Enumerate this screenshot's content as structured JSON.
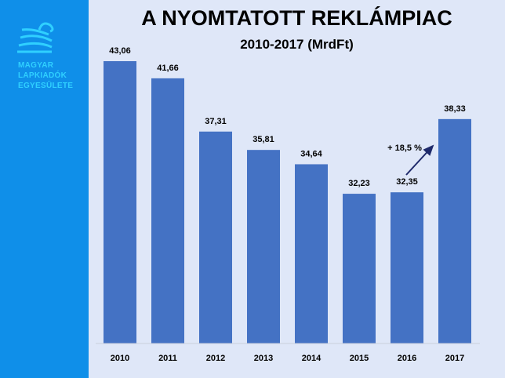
{
  "logo": {
    "lines": [
      "MAGYAR",
      "LAPKIADÓK",
      "EGYESÜLETE"
    ]
  },
  "chart_data": {
    "type": "bar",
    "title": "A NYOMTATOTT REKLÁMPIAC",
    "subtitle": "2010-2017 (MrdFt)",
    "categories": [
      "2010",
      "2011",
      "2012",
      "2013",
      "2014",
      "2015",
      "2016",
      "2017"
    ],
    "values": [
      43.06,
      41.66,
      37.31,
      35.81,
      34.64,
      32.23,
      32.35,
      38.33
    ],
    "data_labels": [
      "43,06",
      "41,66",
      "37,31",
      "35,81",
      "34,64",
      "32,23",
      "32,35",
      "38,33"
    ],
    "ylim": [
      20,
      44
    ],
    "grid": false,
    "annotation": {
      "text": "+ 18,5 %",
      "from": "2016",
      "to": "2017"
    },
    "colors": {
      "bar": "#4472c4",
      "arrow": "#1f2a6b",
      "background": "#dfe7f8",
      "sidebar": "#0f8fe9",
      "logo": "#2fd0ff"
    }
  }
}
